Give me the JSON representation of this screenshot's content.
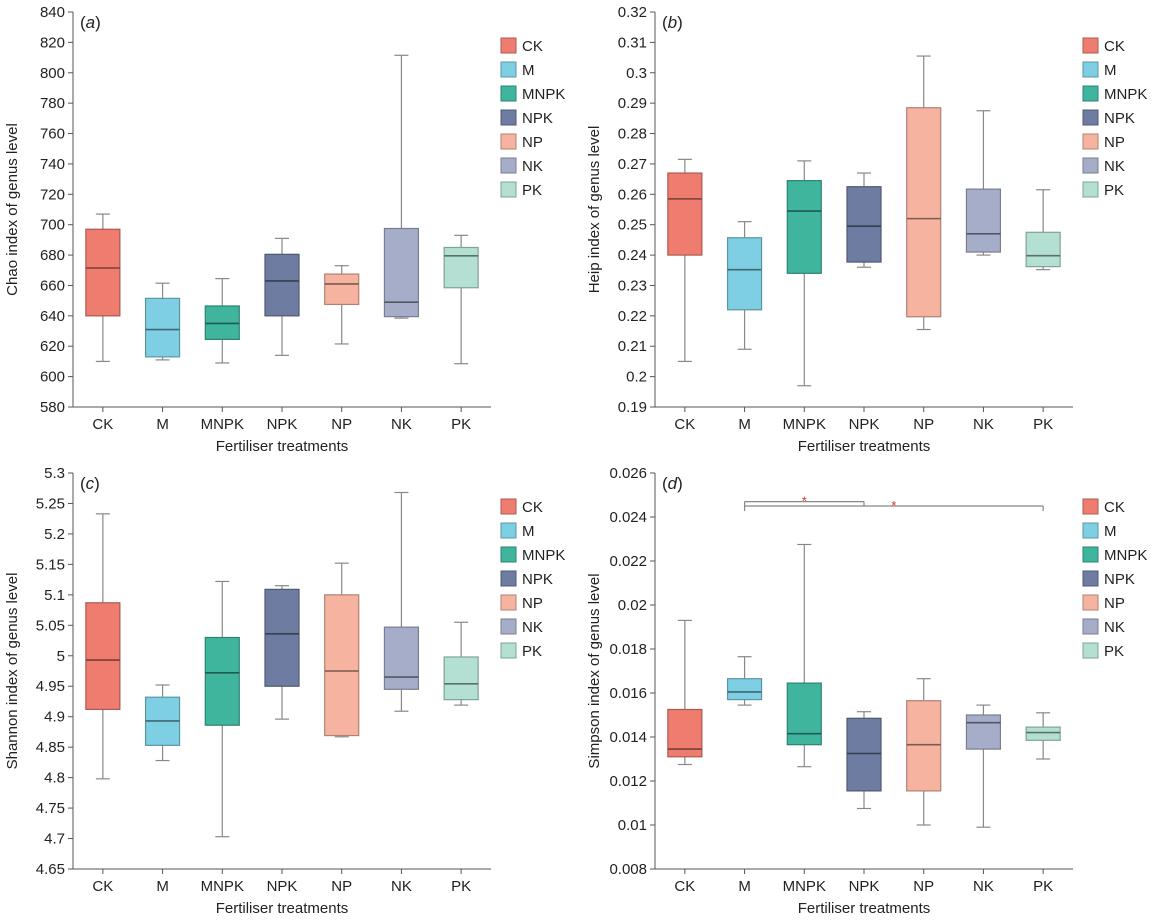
{
  "colors": {
    "CK": "#ef7d6f",
    "M": "#7ecfe3",
    "MNPK": "#3fb59e",
    "NPK": "#6d7ca0",
    "NP": "#f6b3a0",
    "NK": "#a6adc8",
    "PK": "#b3e0d2",
    "axis": "#555555",
    "whisker": "#888888",
    "significance": "#e03030"
  },
  "chart_data": [
    {
      "type": "box",
      "panel_tag": "a",
      "xlabel": "Fertiliser treatments",
      "ylabel": "Chao index of genus level",
      "ylim": [
        580,
        840
      ],
      "yticks": [
        580,
        600,
        620,
        640,
        660,
        680,
        700,
        720,
        740,
        760,
        780,
        800,
        820,
        840
      ],
      "ytick_labels": [
        "580",
        "600",
        "620",
        "640",
        "660",
        "680",
        "700",
        "720",
        "740",
        "760",
        "780",
        "800",
        "820",
        "840"
      ],
      "categories": [
        "CK",
        "M",
        "MNPK",
        "NPK",
        "NP",
        "NK",
        "PK"
      ],
      "legend": [
        "CK",
        "M",
        "MNPK",
        "NPK",
        "NP",
        "NK",
        "PK"
      ],
      "legend_position": "top-right",
      "boxes": [
        {
          "name": "CK",
          "min": 610,
          "q1": 640,
          "median": 671.5,
          "q3": 697,
          "max": 707
        },
        {
          "name": "M",
          "min": 611,
          "q1": 613,
          "median": 631,
          "q3": 651.5,
          "max": 661.5
        },
        {
          "name": "MNPK",
          "min": 609,
          "q1": 624.5,
          "median": 635,
          "q3": 646.5,
          "max": 664.5
        },
        {
          "name": "NPK",
          "min": 614,
          "q1": 640,
          "median": 663,
          "q3": 680.5,
          "max": 691
        },
        {
          "name": "NP",
          "min": 621.5,
          "q1": 647.5,
          "median": 661,
          "q3": 667.5,
          "max": 673
        },
        {
          "name": "NK",
          "min": 638.5,
          "q1": 639.5,
          "median": 649,
          "q3": 697.5,
          "max": 811.5
        },
        {
          "name": "PK",
          "min": 608.5,
          "q1": 658.5,
          "median": 679.5,
          "q3": 685,
          "max": 693
        }
      ]
    },
    {
      "type": "box",
      "panel_tag": "b",
      "xlabel": "Fertiliser treatments",
      "ylabel": "Heip index of genus level",
      "ylim": [
        0.19,
        0.32
      ],
      "yticks": [
        0.19,
        0.2,
        0.21,
        0.22,
        0.23,
        0.24,
        0.25,
        0.26,
        0.27,
        0.28,
        0.29,
        0.3,
        0.31,
        0.32
      ],
      "ytick_labels": [
        "0.19",
        "0.2",
        "0.21",
        "0.22",
        "0.23",
        "0.24",
        "0.25",
        "0.26",
        "0.27",
        "0.28",
        "0.29",
        "0.3",
        "0.31",
        "0.32"
      ],
      "categories": [
        "CK",
        "M",
        "MNPK",
        "NPK",
        "NP",
        "NK",
        "PK"
      ],
      "legend": [
        "CK",
        "M",
        "MNPK",
        "NPK",
        "NP",
        "NK",
        "PK"
      ],
      "legend_position": "top-right",
      "boxes": [
        {
          "name": "CK",
          "min": 0.205,
          "q1": 0.24,
          "median": 0.2585,
          "q3": 0.267,
          "max": 0.2715
        },
        {
          "name": "M",
          "min": 0.209,
          "q1": 0.222,
          "median": 0.2352,
          "q3": 0.2457,
          "max": 0.251
        },
        {
          "name": "MNPK",
          "min": 0.197,
          "q1": 0.234,
          "median": 0.2545,
          "q3": 0.2645,
          "max": 0.271
        },
        {
          "name": "NPK",
          "min": 0.236,
          "q1": 0.2377,
          "median": 0.2495,
          "q3": 0.2625,
          "max": 0.267
        },
        {
          "name": "NP",
          "min": 0.2155,
          "q1": 0.2197,
          "median": 0.252,
          "q3": 0.2885,
          "max": 0.3055
        },
        {
          "name": "NK",
          "min": 0.24,
          "q1": 0.241,
          "median": 0.247,
          "q3": 0.2617,
          "max": 0.2875
        },
        {
          "name": "PK",
          "min": 0.2352,
          "q1": 0.2362,
          "median": 0.2398,
          "q3": 0.2475,
          "max": 0.2615
        }
      ]
    },
    {
      "type": "box",
      "panel_tag": "c",
      "xlabel": "Fertiliser treatments",
      "ylabel": "Shannon index of genus level",
      "ylim": [
        4.65,
        5.3
      ],
      "yticks": [
        4.65,
        4.7,
        4.75,
        4.8,
        4.85,
        4.9,
        4.95,
        5.0,
        5.05,
        5.1,
        5.15,
        5.2,
        5.25,
        5.3
      ],
      "ytick_labels": [
        "4.65",
        "4.7",
        "4.75",
        "4.8",
        "4.85",
        "4.9",
        "4.95",
        "5",
        "5.05",
        "5.1",
        "5.15",
        "5.2",
        "5.25",
        "5.3"
      ],
      "categories": [
        "CK",
        "M",
        "MNPK",
        "NPK",
        "NP",
        "NK",
        "PK"
      ],
      "legend": [
        "CK",
        "M",
        "MNPK",
        "NPK",
        "NP",
        "NK",
        "PK"
      ],
      "legend_position": "top-right",
      "boxes": [
        {
          "name": "CK",
          "min": 4.798,
          "q1": 4.912,
          "median": 4.993,
          "q3": 5.087,
          "max": 5.233
        },
        {
          "name": "M",
          "min": 4.828,
          "q1": 4.853,
          "median": 4.893,
          "q3": 4.932,
          "max": 4.952
        },
        {
          "name": "MNPK",
          "min": 4.703,
          "q1": 4.886,
          "median": 4.972,
          "q3": 5.03,
          "max": 5.122
        },
        {
          "name": "NPK",
          "min": 4.896,
          "q1": 4.95,
          "median": 5.036,
          "q3": 5.109,
          "max": 5.115
        },
        {
          "name": "NP",
          "min": 4.867,
          "q1": 4.869,
          "median": 4.975,
          "q3": 5.1,
          "max": 5.152
        },
        {
          "name": "NK",
          "min": 4.909,
          "q1": 4.945,
          "median": 4.965,
          "q3": 5.047,
          "max": 5.268
        },
        {
          "name": "PK",
          "min": 4.919,
          "q1": 4.928,
          "median": 4.954,
          "q3": 4.998,
          "max": 5.055
        }
      ]
    },
    {
      "type": "box",
      "panel_tag": "d",
      "xlabel": "Fertiliser treatments",
      "ylabel": "Simpson index of genus level",
      "ylim": [
        0.008,
        0.026
      ],
      "yticks": [
        0.008,
        0.01,
        0.012,
        0.014,
        0.016,
        0.018,
        0.02,
        0.022,
        0.024,
        0.026
      ],
      "ytick_labels": [
        "0.008",
        "0.01",
        "0.012",
        "0.014",
        "0.016",
        "0.018",
        "0.02",
        "0.022",
        "0.024",
        "0.026"
      ],
      "categories": [
        "CK",
        "M",
        "MNPK",
        "NPK",
        "NP",
        "NK",
        "PK"
      ],
      "legend": [
        "CK",
        "M",
        "MNPK",
        "NPK",
        "NP",
        "NK",
        "PK"
      ],
      "legend_position": "top-right",
      "significance": [
        {
          "from": "M",
          "to": "NPK",
          "y": 0.0247,
          "label": "*"
        },
        {
          "from": "M",
          "to": "PK",
          "y": 0.0245,
          "label": "*"
        }
      ],
      "boxes": [
        {
          "name": "CK",
          "min": 0.01275,
          "q1": 0.0131,
          "median": 0.01345,
          "q3": 0.01525,
          "max": 0.0193
        },
        {
          "name": "M",
          "min": 0.01545,
          "q1": 0.0157,
          "median": 0.01605,
          "q3": 0.01665,
          "max": 0.01765
        },
        {
          "name": "MNPK",
          "min": 0.01265,
          "q1": 0.01365,
          "median": 0.01415,
          "q3": 0.01645,
          "max": 0.02275
        },
        {
          "name": "NPK",
          "min": 0.01075,
          "q1": 0.01155,
          "median": 0.01325,
          "q3": 0.01485,
          "max": 0.01515
        },
        {
          "name": "NP",
          "min": 0.01,
          "q1": 0.01155,
          "median": 0.01365,
          "q3": 0.01565,
          "max": 0.01665
        },
        {
          "name": "NK",
          "min": 0.0099,
          "q1": 0.01345,
          "median": 0.01465,
          "q3": 0.015,
          "max": 0.01545
        },
        {
          "name": "PK",
          "min": 0.013,
          "q1": 0.01385,
          "median": 0.0142,
          "q3": 0.01445,
          "max": 0.0151
        }
      ]
    }
  ]
}
